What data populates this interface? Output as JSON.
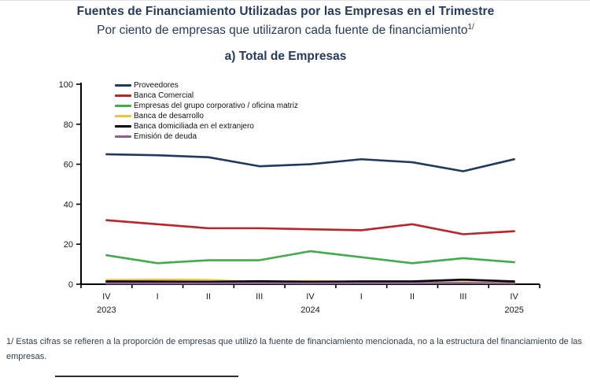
{
  "header": {
    "title": "Fuentes de Financiamiento Utilizadas por las Empresas en el Trimestre",
    "subtitle": "Por ciento de empresas que utilizaron cada fuente de financiamiento",
    "subtitle_superscript": "1/",
    "section_title": "a) Total de Empresas"
  },
  "chart_data": {
    "type": "line",
    "title": "a) Total de Empresas",
    "categories": [
      "IV",
      "I",
      "II",
      "III",
      "IV",
      "I",
      "II",
      "III",
      "IV"
    ],
    "year_labels": [
      {
        "index": 0,
        "label": "2023"
      },
      {
        "index": 4,
        "label": "2024"
      },
      {
        "index": 8,
        "label": "2025"
      }
    ],
    "series": [
      {
        "name": "Proveedores",
        "color": "#1f3864",
        "values": [
          65,
          64.5,
          63.5,
          59,
          60,
          62.5,
          61,
          56.5,
          62.5
        ]
      },
      {
        "name": "Banca Comercial",
        "color": "#bf2228",
        "values": [
          32,
          30,
          28,
          28,
          27.5,
          27,
          30,
          25,
          26.5
        ]
      },
      {
        "name": "Empresas del grupo corporativo / oficina matriz",
        "color": "#3fae4a",
        "values": [
          14.5,
          10.5,
          12,
          12,
          16.5,
          13.5,
          10.5,
          13,
          11
        ]
      },
      {
        "name": "Banca de desarrollo",
        "color": "#eec432",
        "values": [
          2.1,
          2.3,
          2.1,
          1,
          1.6,
          1,
          1.1,
          1.9,
          1
        ]
      },
      {
        "name": "Banca domiciliada en el extranjero",
        "color": "#000000",
        "values": [
          1.4,
          1.3,
          1.2,
          1.5,
          1.2,
          1.4,
          1.4,
          2.3,
          1.4
        ]
      },
      {
        "name": "Emisión de deuda",
        "color": "#8a5f96",
        "values": [
          0.4,
          0.4,
          0.4,
          0.5,
          0.4,
          0.5,
          0.5,
          0.6,
          0.4
        ]
      }
    ],
    "ylim": [
      0,
      100
    ],
    "yticks": [
      0,
      20,
      40,
      60,
      80,
      100
    ],
    "xlabel": "",
    "ylabel": "",
    "grid": false,
    "legend_position": "top-left-inside"
  },
  "footnote": "1/ Estas cifras se refieren a la proporción de empresas que utilizó la fuente de financiamiento mencionada, no a la estructura del financiamiento de las empresas.",
  "colors": {
    "heading_text": "#243a5e",
    "axis": "#000000",
    "tick_text": "#1a1a1a",
    "footnote_text": "#2e3d52"
  }
}
